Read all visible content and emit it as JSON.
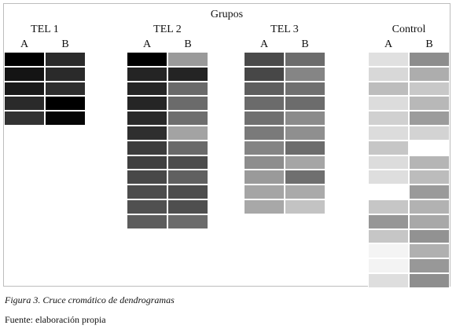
{
  "figure": {
    "title": "Grupos",
    "groups": [
      {
        "label": "TEL 1",
        "cols": [
          "A",
          "B"
        ],
        "A": [
          "#000000",
          "#141414",
          "#1a1a1a",
          "#2a2a2a",
          "#333333"
        ],
        "B": [
          "#2b2b2b",
          "#2a2a2a",
          "#2e2e2e",
          "#000000",
          "#060606"
        ]
      },
      {
        "label": "TEL 2",
        "cols": [
          "A",
          "B"
        ],
        "A": [
          "#000000",
          "#242424",
          "#252525",
          "#252525",
          "#2a2a2a",
          "#2f2f2f",
          "#3c3c3c",
          "#3f3f3f",
          "#484848",
          "#4c4c4c",
          "#505050",
          "#5c5c5c"
        ],
        "B": [
          "#9a9a9a",
          "#242424",
          "#6a6a6a",
          "#6b6b6b",
          "#6e6e6e",
          "#a3a3a3",
          "#6a6a6a",
          "#4c4c4c",
          "#606060",
          "#4d4d4d",
          "#4f4f4f",
          "#6b6b6b"
        ]
      },
      {
        "label": "TEL 3",
        "cols": [
          "A",
          "B"
        ],
        "A": [
          "#4a4a4a",
          "#474747",
          "#5e5e5e",
          "#6b6b6b",
          "#707070",
          "#7a7a7a",
          "#848484",
          "#8d8d8d",
          "#9a9a9a",
          "#a5a5a5",
          "#a8a8a8"
        ],
        "B": [
          "#6c6c6c",
          "#858585",
          "#707070",
          "#6c6c6c",
          "#8b8b8b",
          "#8f8f8f",
          "#6c6c6c",
          "#a5a5a5",
          "#6f6f6f",
          "#aaaaaa",
          "#c3c3c3"
        ]
      },
      {
        "label": "Control",
        "cols": [
          "A",
          "B"
        ],
        "A": [
          "#e0e0e0",
          "#d8d8d8",
          "#bdbdbd",
          "#dcdcdc",
          "#d0d0d0",
          "#dcdcdc",
          "#c6c6c6",
          "#dcdcdc",
          "#dedede",
          "#ffffff",
          "#c6c6c6",
          "#969696",
          "#c6c6c6",
          "#f4f4f4",
          "#f3f3f3",
          "#dedede"
        ],
        "B": [
          "#8d8d8d",
          "#adadad",
          "#c8c8c8",
          "#b8b8b8",
          "#9c9c9c",
          "#d3d3d3",
          "#ffffff",
          "#b5b5b5",
          "#bcbcbc",
          "#9a9a9a",
          "#b2b2b2",
          "#a8a8a8",
          "#929292",
          "#b0b0b0",
          "#989898",
          "#8e8e8e"
        ]
      }
    ]
  },
  "caption": "Figura 3. Cruce cromático de dendrogramas",
  "source": "Fuente: elaboración propia"
}
